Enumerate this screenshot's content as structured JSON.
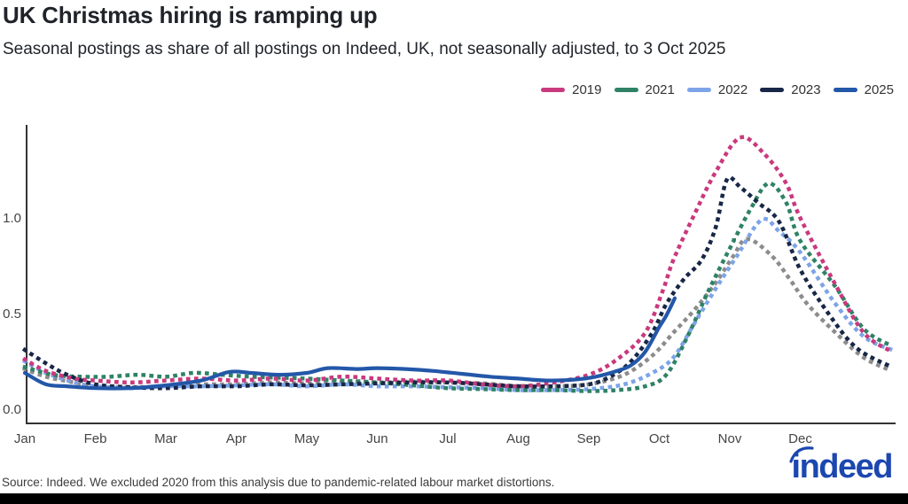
{
  "header": {
    "title": "UK Christmas hiring is ramping up",
    "subtitle": "Seasonal postings as share of all postings on Indeed, UK, not seasonally adjusted, to 3 Oct 2025"
  },
  "legend": [
    {
      "label": "2019",
      "color": "#c9397d"
    },
    {
      "label": "2021",
      "color": "#2f8266"
    },
    {
      "label": "2022",
      "color": "#7da4e8"
    },
    {
      "label": "2023",
      "color": "#182747"
    },
    {
      "label": "2025",
      "color": "#2357a8"
    }
  ],
  "footer": {
    "source": "Source: Indeed. We excluded 2020 from this analysis due to pandemic-related labour market distortions.",
    "logo_text": "indeed",
    "logo_color": "#1c47b0"
  },
  "chart_data": {
    "type": "line",
    "title": "UK Christmas hiring is ramping up",
    "xlabel": "",
    "ylabel": "",
    "grid": false,
    "legend_position": "top-right",
    "ylim": [
      0,
      1.5
    ],
    "xlim_months": [
      0,
      12.33
    ],
    "x_ticks": [
      {
        "label": "Jan",
        "month": 0
      },
      {
        "label": "Feb",
        "month": 1
      },
      {
        "label": "Mar",
        "month": 2
      },
      {
        "label": "Apr",
        "month": 3
      },
      {
        "label": "May",
        "month": 4
      },
      {
        "label": "Jun",
        "month": 5
      },
      {
        "label": "Jul",
        "month": 6
      },
      {
        "label": "Aug",
        "month": 7
      },
      {
        "label": "Sep",
        "month": 8
      },
      {
        "label": "Oct",
        "month": 9
      },
      {
        "label": "Nov",
        "month": 10
      },
      {
        "label": "Dec",
        "month": 11
      }
    ],
    "y_ticks": [
      {
        "label": "0.0",
        "value": 0.0
      },
      {
        "label": "0.5",
        "value": 0.5
      },
      {
        "label": "1.0",
        "value": 1.0
      }
    ],
    "series": [
      {
        "name": "unlabeled",
        "in_legend": false,
        "color": "#8c8c8c",
        "style": "dotted",
        "points": [
          [
            0,
            0.21
          ],
          [
            0.3,
            0.17
          ],
          [
            0.7,
            0.14
          ],
          [
            1,
            0.12
          ],
          [
            1.5,
            0.115
          ],
          [
            2,
            0.12
          ],
          [
            2.5,
            0.13
          ],
          [
            3,
            0.13
          ],
          [
            3.5,
            0.14
          ],
          [
            4,
            0.135
          ],
          [
            4.5,
            0.145
          ],
          [
            5,
            0.14
          ],
          [
            5.5,
            0.145
          ],
          [
            6,
            0.14
          ],
          [
            6.5,
            0.135
          ],
          [
            7,
            0.12
          ],
          [
            7.5,
            0.12
          ],
          [
            8,
            0.13
          ],
          [
            8.5,
            0.18
          ],
          [
            8.9,
            0.28
          ],
          [
            9.2,
            0.4
          ],
          [
            9.5,
            0.52
          ],
          [
            9.8,
            0.66
          ],
          [
            10.05,
            0.8
          ],
          [
            10.25,
            0.89
          ],
          [
            10.6,
            0.8
          ],
          [
            10.85,
            0.68
          ],
          [
            11.1,
            0.55
          ],
          [
            11.5,
            0.4
          ],
          [
            11.9,
            0.27
          ],
          [
            12.3,
            0.2
          ]
        ]
      },
      {
        "name": "2022",
        "in_legend": true,
        "color": "#7da4e8",
        "style": "dotted",
        "points": [
          [
            0,
            0.25
          ],
          [
            0.3,
            0.19
          ],
          [
            0.7,
            0.14
          ],
          [
            1,
            0.12
          ],
          [
            1.5,
            0.11
          ],
          [
            2,
            0.12
          ],
          [
            2.5,
            0.12
          ],
          [
            3,
            0.125
          ],
          [
            3.5,
            0.13
          ],
          [
            4,
            0.12
          ],
          [
            4.5,
            0.13
          ],
          [
            5,
            0.12
          ],
          [
            5.5,
            0.12
          ],
          [
            6,
            0.115
          ],
          [
            6.5,
            0.11
          ],
          [
            7,
            0.1
          ],
          [
            7.5,
            0.1
          ],
          [
            8,
            0.105
          ],
          [
            8.5,
            0.13
          ],
          [
            8.9,
            0.19
          ],
          [
            9.2,
            0.27
          ],
          [
            9.5,
            0.45
          ],
          [
            9.8,
            0.63
          ],
          [
            10.1,
            0.8
          ],
          [
            10.45,
            0.99
          ],
          [
            10.7,
            0.93
          ],
          [
            11,
            0.82
          ],
          [
            11.5,
            0.55
          ],
          [
            11.9,
            0.38
          ],
          [
            12.3,
            0.31
          ]
        ]
      },
      {
        "name": "2021",
        "in_legend": true,
        "color": "#2f8266",
        "style": "dotted",
        "points": [
          [
            0,
            0.22
          ],
          [
            0.4,
            0.18
          ],
          [
            0.8,
            0.17
          ],
          [
            1.2,
            0.17
          ],
          [
            1.6,
            0.18
          ],
          [
            2,
            0.17
          ],
          [
            2.4,
            0.19
          ],
          [
            2.8,
            0.18
          ],
          [
            3.2,
            0.17
          ],
          [
            3.6,
            0.165
          ],
          [
            4,
            0.16
          ],
          [
            4.5,
            0.15
          ],
          [
            5,
            0.14
          ],
          [
            5.5,
            0.125
          ],
          [
            6,
            0.11
          ],
          [
            6.5,
            0.105
          ],
          [
            7,
            0.1
          ],
          [
            7.5,
            0.1
          ],
          [
            8,
            0.095
          ],
          [
            8.4,
            0.1
          ],
          [
            8.8,
            0.12
          ],
          [
            9.1,
            0.18
          ],
          [
            9.4,
            0.38
          ],
          [
            9.7,
            0.62
          ],
          [
            10,
            0.84
          ],
          [
            10.3,
            1.05
          ],
          [
            10.55,
            1.18
          ],
          [
            10.8,
            1.08
          ],
          [
            11,
            0.88
          ],
          [
            11.5,
            0.64
          ],
          [
            11.9,
            0.42
          ],
          [
            12.3,
            0.33
          ]
        ]
      },
      {
        "name": "2019",
        "in_legend": true,
        "color": "#c9397d",
        "style": "dotted",
        "points": [
          [
            0,
            0.26
          ],
          [
            0.3,
            0.2
          ],
          [
            0.7,
            0.16
          ],
          [
            1,
            0.15
          ],
          [
            1.5,
            0.14
          ],
          [
            2,
            0.15
          ],
          [
            2.5,
            0.16
          ],
          [
            3,
            0.15
          ],
          [
            3.5,
            0.16
          ],
          [
            4,
            0.15
          ],
          [
            4.5,
            0.17
          ],
          [
            5,
            0.16
          ],
          [
            5.5,
            0.15
          ],
          [
            6,
            0.15
          ],
          [
            6.5,
            0.13
          ],
          [
            7,
            0.12
          ],
          [
            7.5,
            0.14
          ],
          [
            8,
            0.18
          ],
          [
            8.4,
            0.26
          ],
          [
            8.8,
            0.4
          ],
          [
            9.05,
            0.62
          ],
          [
            9.2,
            0.78
          ],
          [
            9.5,
            1.02
          ],
          [
            9.8,
            1.24
          ],
          [
            10.15,
            1.42
          ],
          [
            10.5,
            1.33
          ],
          [
            10.8,
            1.18
          ],
          [
            11,
            1.0
          ],
          [
            11.5,
            0.65
          ],
          [
            11.9,
            0.4
          ],
          [
            12.3,
            0.3
          ]
        ]
      },
      {
        "name": "2023",
        "in_legend": true,
        "color": "#182747",
        "style": "dotted",
        "points": [
          [
            0,
            0.31
          ],
          [
            0.3,
            0.24
          ],
          [
            0.6,
            0.18
          ],
          [
            1,
            0.13
          ],
          [
            1.5,
            0.115
          ],
          [
            2,
            0.11
          ],
          [
            2.5,
            0.12
          ],
          [
            3,
            0.12
          ],
          [
            3.5,
            0.13
          ],
          [
            4,
            0.125
          ],
          [
            4.5,
            0.13
          ],
          [
            5,
            0.135
          ],
          [
            5.5,
            0.14
          ],
          [
            6,
            0.14
          ],
          [
            6.5,
            0.13
          ],
          [
            7,
            0.12
          ],
          [
            7.5,
            0.12
          ],
          [
            8,
            0.13
          ],
          [
            8.3,
            0.17
          ],
          [
            8.6,
            0.25
          ],
          [
            8.9,
            0.4
          ],
          [
            9.1,
            0.55
          ],
          [
            9.35,
            0.68
          ],
          [
            9.6,
            0.78
          ],
          [
            9.8,
            0.95
          ],
          [
            9.96,
            1.2
          ],
          [
            10.15,
            1.16
          ],
          [
            10.4,
            1.08
          ],
          [
            10.7,
            0.98
          ],
          [
            11,
            0.73
          ],
          [
            11.4,
            0.5
          ],
          [
            11.8,
            0.32
          ],
          [
            12.3,
            0.22
          ]
        ]
      },
      {
        "name": "2025",
        "in_legend": true,
        "color": "#2357a8",
        "style": "solid",
        "points": [
          [
            0,
            0.19
          ],
          [
            0.3,
            0.13
          ],
          [
            0.6,
            0.12
          ],
          [
            1,
            0.11
          ],
          [
            1.5,
            0.11
          ],
          [
            2,
            0.125
          ],
          [
            2.5,
            0.15
          ],
          [
            2.9,
            0.195
          ],
          [
            3.2,
            0.19
          ],
          [
            3.6,
            0.18
          ],
          [
            4,
            0.19
          ],
          [
            4.3,
            0.215
          ],
          [
            4.7,
            0.21
          ],
          [
            5,
            0.215
          ],
          [
            5.4,
            0.21
          ],
          [
            5.8,
            0.2
          ],
          [
            6.2,
            0.185
          ],
          [
            6.6,
            0.17
          ],
          [
            7,
            0.16
          ],
          [
            7.4,
            0.15
          ],
          [
            7.8,
            0.155
          ],
          [
            8.1,
            0.17
          ],
          [
            8.4,
            0.2
          ],
          [
            8.6,
            0.23
          ],
          [
            8.8,
            0.3
          ],
          [
            9.0,
            0.43
          ],
          [
            9.1,
            0.49
          ],
          [
            9.22,
            0.58
          ]
        ]
      }
    ]
  }
}
